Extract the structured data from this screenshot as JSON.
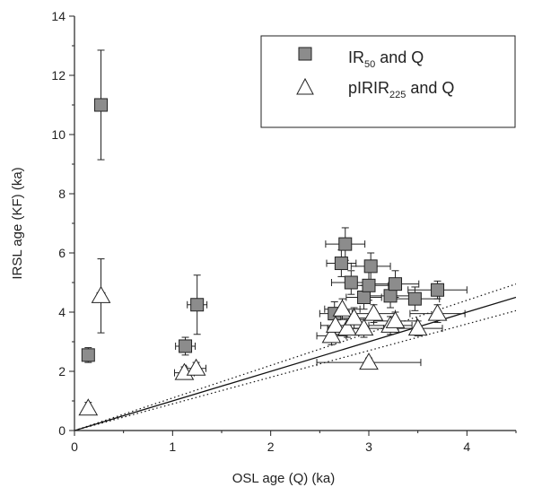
{
  "chart_data": {
    "type": "scatter",
    "xlabel": "OSL age (Q) (ka)",
    "ylabel": "IRSL age (KF) (ka)",
    "xlim": [
      0,
      4.5
    ],
    "ylim": [
      0,
      14
    ],
    "xticks": [
      "0",
      "1",
      "2",
      "3",
      "4"
    ],
    "yticks": [
      "0",
      "2",
      "4",
      "6",
      "8",
      "10",
      "12",
      "14"
    ],
    "legend_position": "top-right",
    "series": [
      {
        "name": "IR50 and Q",
        "legend_base": "IR",
        "legend_sub": "50",
        "legend_tail": " and Q",
        "marker": "square",
        "color": "#8c8c8c",
        "points": [
          {
            "x": 0.14,
            "y": 2.55,
            "xerr": 0.03,
            "yerr": 0.25
          },
          {
            "x": 0.27,
            "y": 11.0,
            "xerr": 0.04,
            "yerr": 1.85
          },
          {
            "x": 1.13,
            "y": 2.85,
            "xerr": 0.1,
            "yerr": 0.3
          },
          {
            "x": 1.25,
            "y": 4.25,
            "xerr": 0.1,
            "yerr": 1.0
          },
          {
            "x": 2.65,
            "y": 3.95,
            "xerr": 0.15,
            "yerr": 0.4
          },
          {
            "x": 2.72,
            "y": 5.65,
            "xerr": 0.15,
            "yerr": 0.45
          },
          {
            "x": 2.76,
            "y": 6.3,
            "xerr": 0.2,
            "yerr": 0.55
          },
          {
            "x": 2.82,
            "y": 5.0,
            "xerr": 0.2,
            "yerr": 0.4
          },
          {
            "x": 2.95,
            "y": 4.5,
            "xerr": 0.18,
            "yerr": 0.4
          },
          {
            "x": 3.0,
            "y": 4.9,
            "xerr": 0.2,
            "yerr": 0.5
          },
          {
            "x": 3.02,
            "y": 5.55,
            "xerr": 0.2,
            "yerr": 0.45
          },
          {
            "x": 3.22,
            "y": 4.55,
            "xerr": 0.22,
            "yerr": 0.4
          },
          {
            "x": 3.27,
            "y": 4.95,
            "xerr": 0.24,
            "yerr": 0.45
          },
          {
            "x": 3.47,
            "y": 4.45,
            "xerr": 0.25,
            "yerr": 0.4
          },
          {
            "x": 3.7,
            "y": 4.75,
            "xerr": 0.3,
            "yerr": 0.3
          }
        ]
      },
      {
        "name": "pIRIR225 and Q",
        "legend_base": "pIRIR",
        "legend_sub": "225",
        "legend_tail": " and Q",
        "marker": "triangle",
        "color": "#ffffff",
        "points": [
          {
            "x": 0.14,
            "y": 0.75,
            "xerr": 0.03,
            "yerr": 0.2
          },
          {
            "x": 0.27,
            "y": 4.55,
            "xerr": 0.04,
            "yerr": 1.25
          },
          {
            "x": 1.12,
            "y": 1.95,
            "xerr": 0.1,
            "yerr": 0.2
          },
          {
            "x": 1.24,
            "y": 2.1,
            "xerr": 0.1,
            "yerr": 0.2
          },
          {
            "x": 2.62,
            "y": 3.2,
            "xerr": 0.15,
            "yerr": 0.3
          },
          {
            "x": 2.66,
            "y": 3.55,
            "xerr": 0.15,
            "yerr": 0.3
          },
          {
            "x": 2.73,
            "y": 4.1,
            "xerr": 0.18,
            "yerr": 0.35
          },
          {
            "x": 2.78,
            "y": 3.45,
            "xerr": 0.2,
            "yerr": 0.3
          },
          {
            "x": 2.85,
            "y": 3.8,
            "xerr": 0.2,
            "yerr": 0.35
          },
          {
            "x": 2.95,
            "y": 3.45,
            "xerr": 0.2,
            "yerr": 0.3
          },
          {
            "x": 3.0,
            "y": 2.3,
            "xerr": 0.53,
            "yerr": 0.15
          },
          {
            "x": 3.05,
            "y": 3.95,
            "xerr": 0.22,
            "yerr": 0.3
          },
          {
            "x": 3.22,
            "y": 3.55,
            "xerr": 0.22,
            "yerr": 0.3
          },
          {
            "x": 3.27,
            "y": 3.7,
            "xerr": 0.22,
            "yerr": 0.3
          },
          {
            "x": 3.5,
            "y": 3.45,
            "xerr": 0.25,
            "yerr": 0.25
          },
          {
            "x": 3.7,
            "y": 3.95,
            "xerr": 0.28,
            "yerr": 0.3
          }
        ]
      }
    ],
    "lines": [
      {
        "kind": "1:1 line",
        "style": "solid",
        "slope": 1.0
      },
      {
        "kind": "upper bound",
        "style": "dotted",
        "slope": 1.1
      },
      {
        "kind": "lower bound",
        "style": "dotted",
        "slope": 0.9
      }
    ]
  }
}
